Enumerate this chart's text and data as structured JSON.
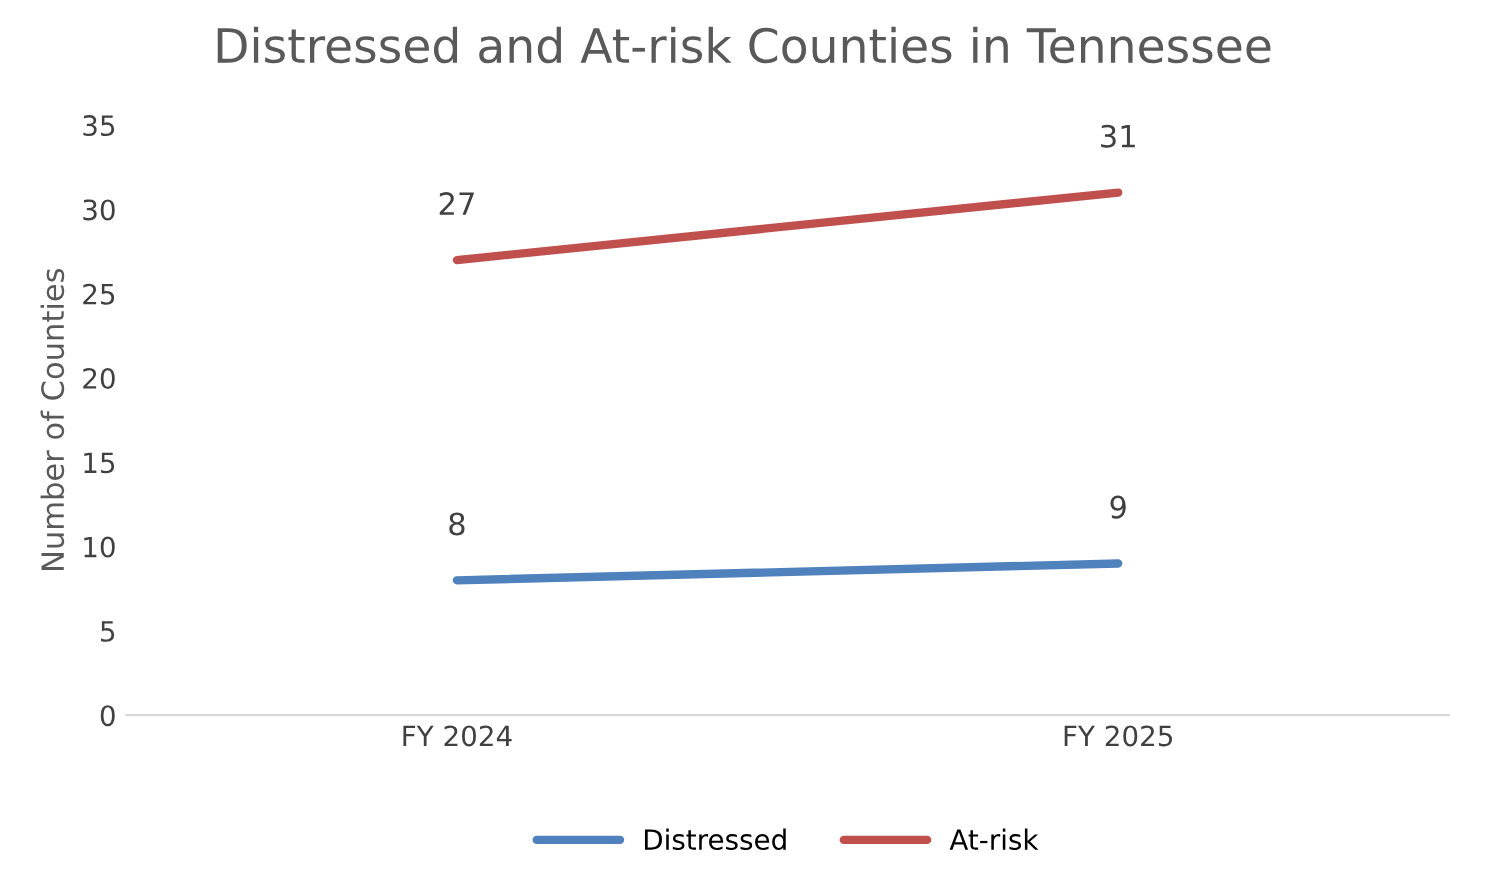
{
  "chart_data": {
    "type": "line",
    "title": "Distressed and At-risk Counties in Tennessee",
    "ylabel": "Number of Counties",
    "categories": [
      "FY 2024",
      "FY 2025"
    ],
    "series": [
      {
        "name": "Distressed",
        "color": "#4f81bd",
        "values": [
          8,
          9
        ]
      },
      {
        "name": "At-risk",
        "color": "#c0504d",
        "values": [
          27,
          31
        ]
      }
    ],
    "ylim": [
      0,
      35
    ],
    "yticks": [
      0,
      5,
      10,
      15,
      20,
      25,
      30,
      35
    ],
    "grid": false,
    "legend": "bottom",
    "data_labels": true,
    "marker": "none",
    "line_style": "solid"
  }
}
